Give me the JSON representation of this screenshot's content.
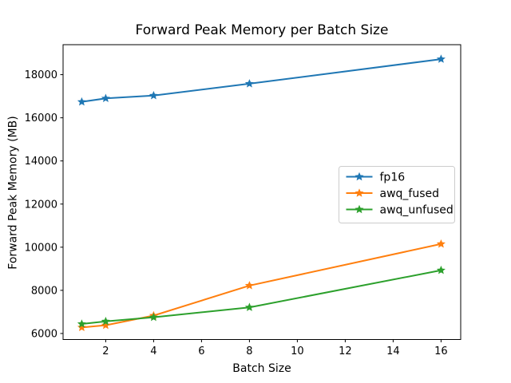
{
  "figure": {
    "title": "Forward Peak Memory per Batch Size",
    "xlabel": "Batch Size",
    "ylabel": "Forward Peak Memory (MB)"
  },
  "chart_data": {
    "type": "line",
    "title": "Forward Peak Memory per Batch Size",
    "xlabel": "Batch Size",
    "ylabel": "Forward Peak Memory (MB)",
    "x": [
      1,
      2,
      4,
      8,
      16
    ],
    "series": [
      {
        "name": "fp16",
        "color": "#1f77b4",
        "marker": "star",
        "values": [
          16740,
          16900,
          17030,
          17580,
          18720
        ]
      },
      {
        "name": "awq_fused",
        "color": "#ff7f0e",
        "marker": "star",
        "values": [
          6280,
          6380,
          6830,
          8220,
          10150
        ]
      },
      {
        "name": "awq_unfused",
        "color": "#2ca02c",
        "marker": "star",
        "values": [
          6440,
          6560,
          6750,
          7210,
          8930
        ]
      }
    ],
    "xticks": [
      2,
      4,
      6,
      8,
      10,
      12,
      14,
      16
    ],
    "yticks": [
      6000,
      8000,
      10000,
      12000,
      14000,
      16000,
      18000
    ],
    "xlim": [
      0.22,
      16.82
    ],
    "ylim": [
      5720,
      19390
    ],
    "grid": false,
    "legend_position": "center-right",
    "background_color": "#ffffff",
    "spine_color": "#000000",
    "legend_border_color": "#cccccc"
  }
}
